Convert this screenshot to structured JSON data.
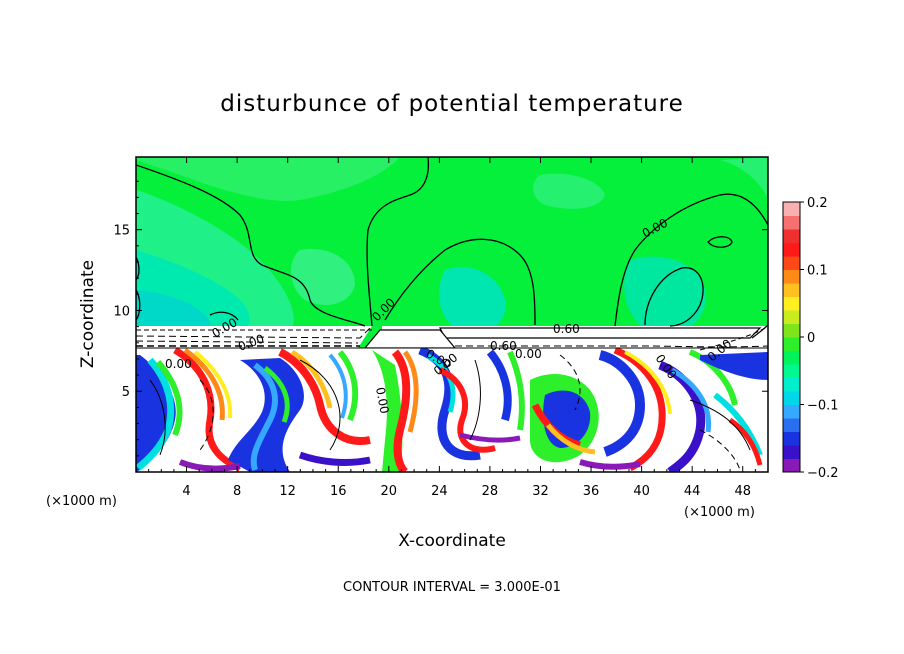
{
  "chart_data": {
    "type": "heatmap",
    "title": "disturbunce of potential temperature",
    "xlabel": "X-coordinate",
    "ylabel": "Z-coordinate",
    "x_unit": "(×1000 m)",
    "y_unit": "(×1000 m)",
    "xlim": [
      0,
      50
    ],
    "ylim": [
      0,
      19.5
    ],
    "x_ticks": [
      4,
      8,
      12,
      16,
      20,
      24,
      28,
      32,
      36,
      40,
      44,
      48
    ],
    "y_ticks": [
      5,
      10,
      15
    ],
    "colorbar": {
      "range": [
        -0.2,
        0.2
      ],
      "tick_labels": [
        "0.2",
        "0.1",
        "0",
        "−0.1",
        "−0.2"
      ],
      "tick_values": [
        0.2,
        0.1,
        0,
        -0.1,
        -0.2
      ],
      "colors": [
        "#8a1ab8",
        "#3a10c8",
        "#1a33e0",
        "#2c6ef0",
        "#35a8ff",
        "#00d7e8",
        "#00eecc",
        "#00f890",
        "#00f35a",
        "#2df02a",
        "#7ee51c",
        "#c8ec20",
        "#ffee20",
        "#ffc020",
        "#ff8a18",
        "#ff4818",
        "#ff1a1a",
        "#f03030",
        "#f77070",
        "#f8b0b0"
      ]
    },
    "contour_labels": [
      "0.00",
      "0.00",
      "0.00",
      "0.00",
      "0.00",
      "0.00",
      "0.00",
      "0.00",
      "0.60",
      "0.60",
      "0.00",
      "0.00",
      "0.00"
    ],
    "contour_interval_note": "CONTOUR INTERVAL =  3.000E-01"
  }
}
